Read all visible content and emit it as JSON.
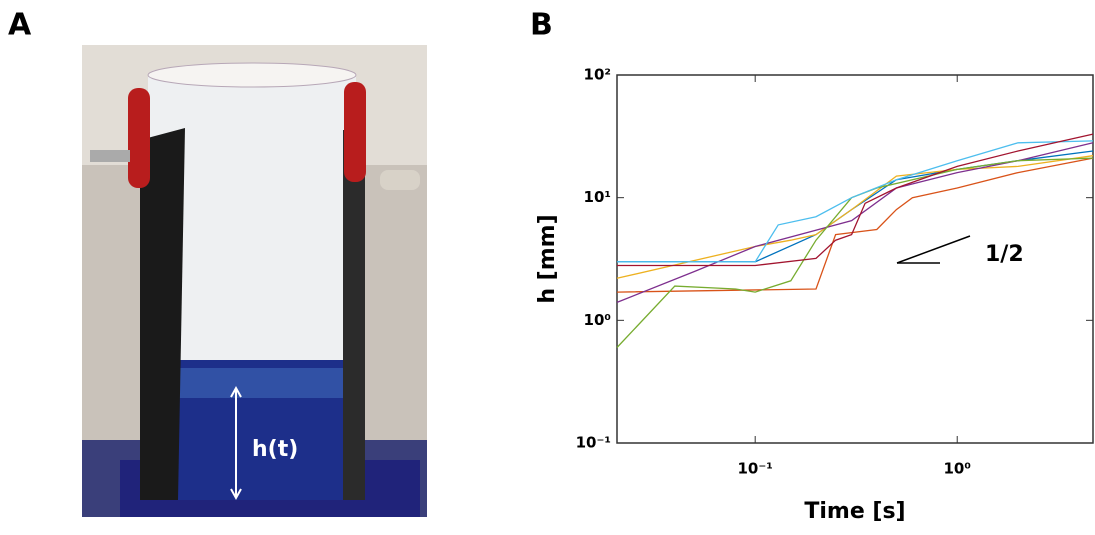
{
  "panel_a": {
    "label": "A",
    "annotation": "h(t)"
  },
  "chart_data": {
    "type": "line",
    "panel_label": "B",
    "xlabel": "Time [s]",
    "ylabel": "h [mm]",
    "xscale": "log",
    "yscale": "log",
    "xlim": [
      0.0207,
      4.7
    ],
    "ylim": [
      0.1,
      100
    ],
    "xticks": [
      {
        "value": 0.1,
        "label": "10⁻¹"
      },
      {
        "value": 1,
        "label": "10⁰"
      }
    ],
    "yticks": [
      {
        "value": 0.1,
        "label": "10⁻¹"
      },
      {
        "value": 1,
        "label": "10⁰"
      },
      {
        "value": 10,
        "label": "10¹"
      },
      {
        "value": 100,
        "label": "10²"
      }
    ],
    "slope_annotation": "1/2",
    "series": [
      {
        "color": "#0072BD",
        "x": [
          0.0207,
          0.06,
          0.1,
          0.2,
          0.3,
          0.5,
          1,
          2,
          4.7
        ],
        "values": [
          3.0,
          3.0,
          3.0,
          5,
          8,
          14,
          17,
          20,
          24
        ]
      },
      {
        "color": "#D95319",
        "x": [
          0.0207,
          0.2,
          0.25,
          0.4,
          0.5,
          0.6,
          1,
          2,
          4.7
        ],
        "values": [
          1.7,
          1.8,
          5,
          5.5,
          8,
          10,
          12,
          16,
          21
        ]
      },
      {
        "color": "#EDB120",
        "x": [
          0.0207,
          0.1,
          0.15,
          0.2,
          0.3,
          0.5,
          1,
          2,
          4.7
        ],
        "values": [
          2.2,
          4,
          4.5,
          5,
          8,
          15,
          17,
          18,
          22
        ]
      },
      {
        "color": "#7E2F8E",
        "x": [
          0.0207,
          0.05,
          0.1,
          0.3,
          0.5,
          1,
          2,
          4.7
        ],
        "values": [
          1.4,
          2.5,
          4,
          6.5,
          12,
          16,
          20,
          28
        ]
      },
      {
        "color": "#77AC30",
        "x": [
          0.0207,
          0.04,
          0.08,
          0.1,
          0.15,
          0.2,
          0.3,
          0.4,
          1,
          2,
          4.7
        ],
        "values": [
          0.6,
          1.9,
          1.8,
          1.7,
          2.1,
          4.5,
          10,
          12,
          17,
          20,
          21
        ]
      },
      {
        "color": "#4DBEEE",
        "x": [
          0.0207,
          0.1,
          0.13,
          0.2,
          0.3,
          0.5,
          1,
          2,
          4.7
        ],
        "values": [
          3.0,
          3.0,
          6,
          7,
          10,
          14,
          20,
          28,
          29
        ]
      },
      {
        "color": "#A2142F",
        "x": [
          0.0207,
          0.1,
          0.2,
          0.25,
          0.3,
          0.35,
          0.5,
          1,
          2,
          4.7
        ],
        "values": [
          2.8,
          2.8,
          3.2,
          4.5,
          5,
          9,
          12,
          18,
          24,
          33
        ]
      }
    ]
  }
}
